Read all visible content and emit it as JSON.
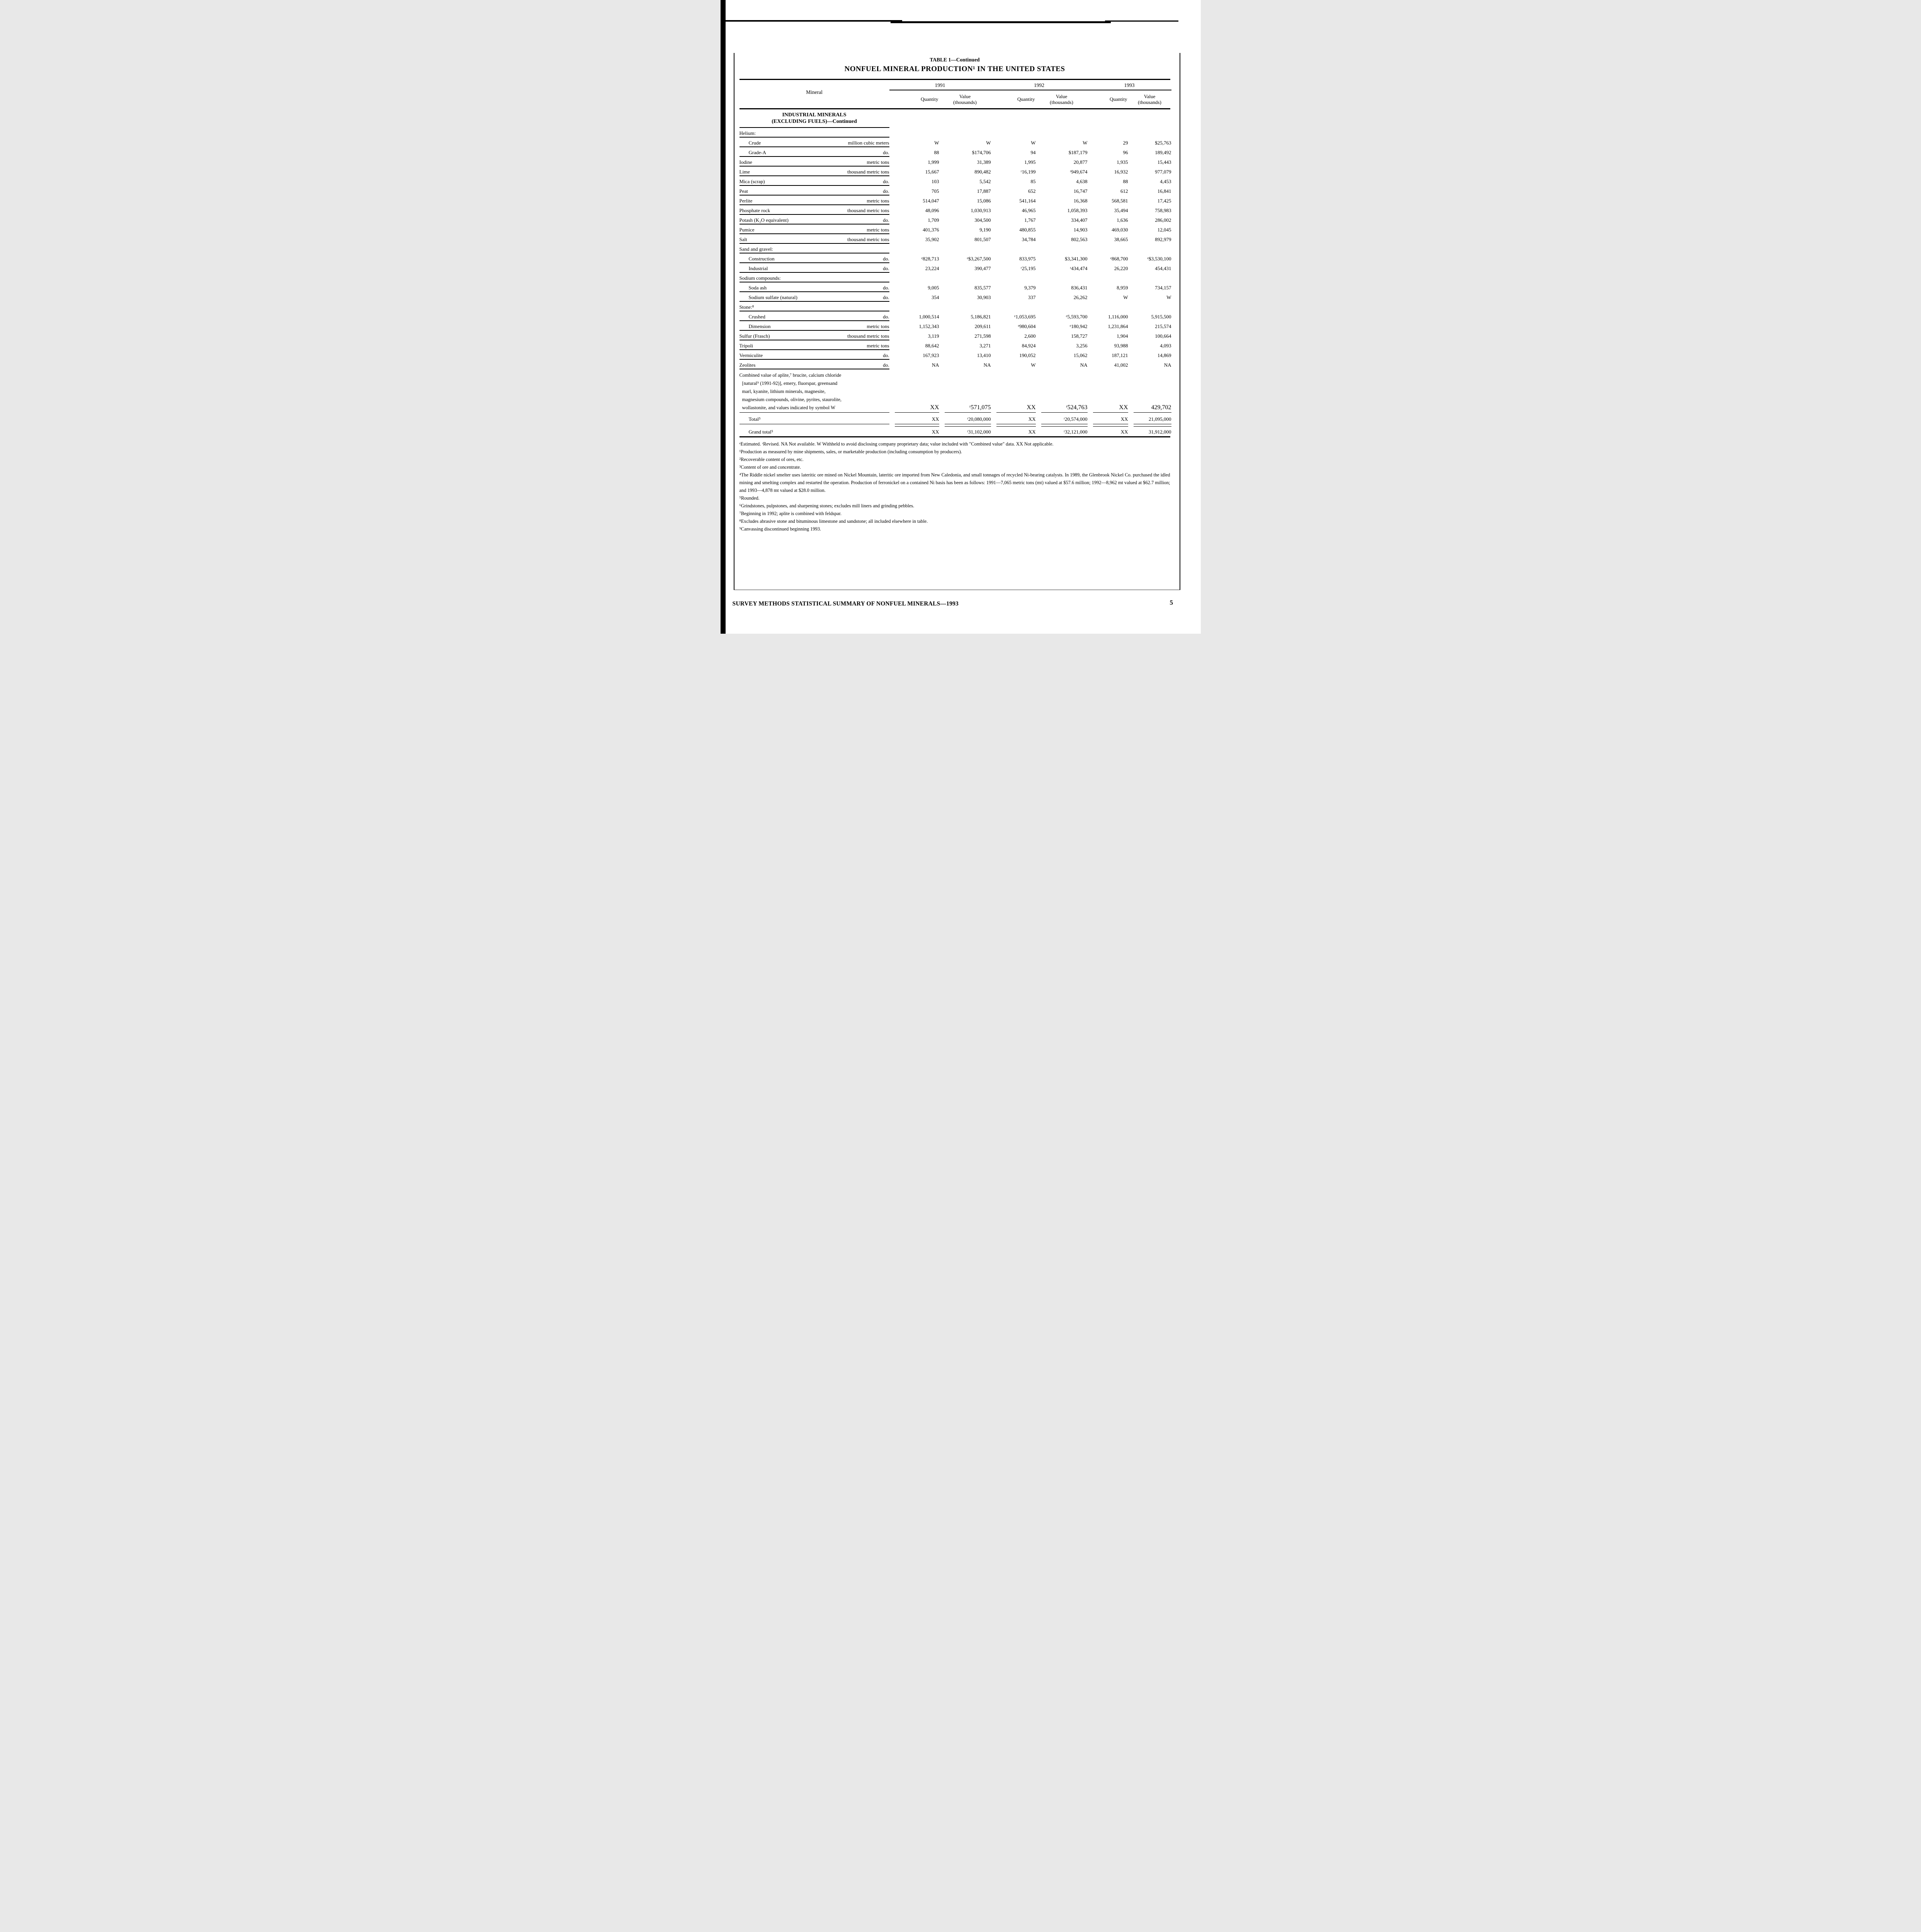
{
  "page": {
    "title_line1": "TABLE 1—Continued",
    "title_line2": "NONFUEL MINERAL PRODUCTION¹ IN THE UNITED STATES"
  },
  "table": {
    "mineral_header": "Mineral",
    "years": [
      "1991",
      "1992",
      "1993"
    ],
    "quantity_label": "Quantity",
    "value_label": "Value",
    "value_sublabel": "(thousands)",
    "section": {
      "line1": "INDUSTRIAL MINERALS",
      "line2": "(EXCLUDING FUELS)—Continued"
    },
    "rows": [
      {
        "type": "group",
        "label": "Helium:"
      },
      {
        "type": "data",
        "indent": true,
        "label": "Crude",
        "unit": "million cubic meters",
        "values": [
          "W",
          "W",
          "W",
          "W",
          "29",
          "$25,763"
        ]
      },
      {
        "type": "data",
        "indent": true,
        "label": "Grade-A",
        "unit": "do.",
        "values": [
          "88",
          "$174,706",
          "94",
          "$187,179",
          "96",
          "189,492"
        ]
      },
      {
        "type": "data",
        "indent": false,
        "label": "Iodine",
        "unit": "metric tons",
        "values": [
          "1,999",
          "31,389",
          "1,995",
          "20,877",
          "1,935",
          "15,443"
        ]
      },
      {
        "type": "data",
        "indent": false,
        "label": "Lime",
        "unit": "thousand metric tons",
        "values": [
          "15,667",
          "890,482",
          "ʳ16,199",
          "ʳ949,674",
          "16,932",
          "977,079"
        ]
      },
      {
        "type": "data",
        "indent": false,
        "label": "Mica (scrap)",
        "unit": "do.",
        "values": [
          "103",
          "5,542",
          "85",
          "4,638",
          "88",
          "4,453"
        ]
      },
      {
        "type": "data",
        "indent": false,
        "label": "Peat",
        "unit": "do.",
        "values": [
          "705",
          "17,887",
          "652",
          "16,747",
          "612",
          "16,841"
        ]
      },
      {
        "type": "data",
        "indent": false,
        "label": "Perlite",
        "unit": "metric tons",
        "values": [
          "514,047",
          "15,086",
          "541,164",
          "16,368",
          "568,581",
          "17,425"
        ]
      },
      {
        "type": "data",
        "indent": false,
        "label": "Phosphate rock",
        "unit": "thousand metric tons",
        "values": [
          "48,096",
          "1,030,913",
          "46,965",
          "1,058,393",
          "35,494",
          "758,983"
        ]
      },
      {
        "type": "data",
        "indent": false,
        "label": "Potash (K₂O equivalent)",
        "unit": "do.",
        "values": [
          "1,709",
          "304,500",
          "1,767",
          "334,407",
          "1,636",
          "286,002"
        ]
      },
      {
        "type": "data",
        "indent": false,
        "label": "Pumice",
        "unit": "metric tons",
        "values": [
          "401,376",
          "9,190",
          "480,855",
          "14,903",
          "469,030",
          "12,045"
        ]
      },
      {
        "type": "data",
        "indent": false,
        "label": "Salt",
        "unit": "thousand metric tons",
        "values": [
          "35,902",
          "801,507",
          "34,784",
          "802,563",
          "38,665",
          "892,979"
        ]
      },
      {
        "type": "group",
        "label": "Sand and gravel:"
      },
      {
        "type": "data",
        "indent": true,
        "label": "Construction",
        "unit": "do.",
        "values": [
          "ᵉ828,713",
          "ᵉ$3,267,500",
          "833,975",
          "$3,341,300",
          "ᵉ868,700",
          "ᵉ$3,530,100"
        ]
      },
      {
        "type": "data",
        "indent": true,
        "label": "Industrial",
        "unit": "do.",
        "values": [
          "23,224",
          "390,477",
          "ʳ25,195",
          "ʳ434,474",
          "26,220",
          "454,431"
        ]
      },
      {
        "type": "group",
        "label": "Sodium compounds:"
      },
      {
        "type": "data",
        "indent": true,
        "label": "Soda ash",
        "unit": "do.",
        "values": [
          "9,005",
          "835,577",
          "9,379",
          "836,431",
          "8,959",
          "734,157"
        ]
      },
      {
        "type": "data",
        "indent": true,
        "label": "Sodium sulfate (natural)",
        "unit": "do.",
        "values": [
          "354",
          "30,903",
          "337",
          "26,262",
          "W",
          "W"
        ]
      },
      {
        "type": "group",
        "label": "Stone:⁸"
      },
      {
        "type": "data",
        "indent": true,
        "label": "Crushed",
        "unit": "do.",
        "values": [
          "1,000,514",
          "5,186,821",
          "ᵉ1,053,695",
          "ᵉ5,593,700",
          "1,116,000",
          "5,915,500"
        ]
      },
      {
        "type": "data",
        "indent": true,
        "label": "Dimension",
        "unit": "metric tons",
        "values": [
          "1,152,343",
          "209,611",
          "ᵉ980,604",
          "ᵉ180,942",
          "1,231,864",
          "215,574"
        ]
      },
      {
        "type": "data",
        "indent": false,
        "label": "Sulfur (Frasch)",
        "unit": "thousand metric tons",
        "values": [
          "3,119",
          "271,598",
          "2,600",
          "158,727",
          "1,904",
          "100,664"
        ]
      },
      {
        "type": "data",
        "indent": false,
        "label": "Tripoli",
        "unit": "metric tons",
        "values": [
          "88,642",
          "3,271",
          "84,924",
          "3,256",
          "93,988",
          "4,093"
        ]
      },
      {
        "type": "data",
        "indent": false,
        "label": "Vermiculite",
        "unit": "do.",
        "values": [
          "167,923",
          "13,410",
          "190,052",
          "15,062",
          "187,121",
          "14,869"
        ]
      },
      {
        "type": "data",
        "indent": false,
        "label": "Zeolites",
        "unit": "do.",
        "values": [
          "NA",
          "NA",
          "W",
          "NA",
          "41,002",
          "NA"
        ]
      }
    ],
    "combined": {
      "lines": [
        "Combined value of aplite,⁷ brucite, calcium chloride",
        "[natural⁹ (1991-92)], emery, fluorspar, greensand",
        "marl, kyanite, lithium minerals, magnesite,",
        "magnesium compounds, olivine, pyrites, staurolite,",
        "wollastonite, and values indicated by symbol W"
      ],
      "values": [
        "XX",
        "ʳ571,075",
        "XX",
        "ʳ524,763",
        "XX",
        "429,702"
      ]
    },
    "total": {
      "label": "Total⁵",
      "values": [
        "XX",
        "ʳ20,080,000",
        "XX",
        "ʳ20,574,000",
        "XX",
        "21,095,000"
      ]
    },
    "grand_total": {
      "label": "Grand total⁵",
      "values": [
        "XX",
        "ʳ31,102,000",
        "XX",
        "ʳ32,121,000",
        "XX",
        "31,912,000"
      ]
    }
  },
  "footnotes": [
    "ᵉEstimated.  ʳRevised.  NA Not available.  W Withheld to avoid disclosing company proprietary data; value included with \"Combined value\" data.  XX Not applicable.",
    "¹Production as measured by mine shipments, sales, or marketable production (including consumption by producers).",
    "²Recoverable content of ores, etc.",
    "³Content of ore and concentrate.",
    "⁴The Riddle nickel smelter uses lateritic ore mined on Nickel Mountain, lateritic ore imported from New Caledonia, and small tonnages of recycled Ni-bearing catalysts.  In 1989, the Glenbrook Nickel Co. purchased the idled mining and smelting complex and restarted the operation.  Production of ferronickel on a contained Ni basis has been as follows:  1991—7,065 metric tons (mt) valued at $57.6 million; 1992—8,962 mt valued at $62.7 million; and 1993—4,878 mt valued at $28.0 million.",
    "⁵Rounded.",
    "⁶Grindstones, pulpstones, and sharpening stones; excludes mill liners and grinding pebbles.",
    "⁷Beginning in 1992; aplite is combined with feldspar.",
    "⁸Excludes abrasive stone and bituminous limestone and sandstone; all included elsewhere in table.",
    "⁹Canvassing discontinued beginning 1993."
  ],
  "footer": {
    "left": "SURVEY METHODS STATISTICAL SUMMARY OF NONFUEL MINERALS—1993",
    "page_number": "5"
  }
}
